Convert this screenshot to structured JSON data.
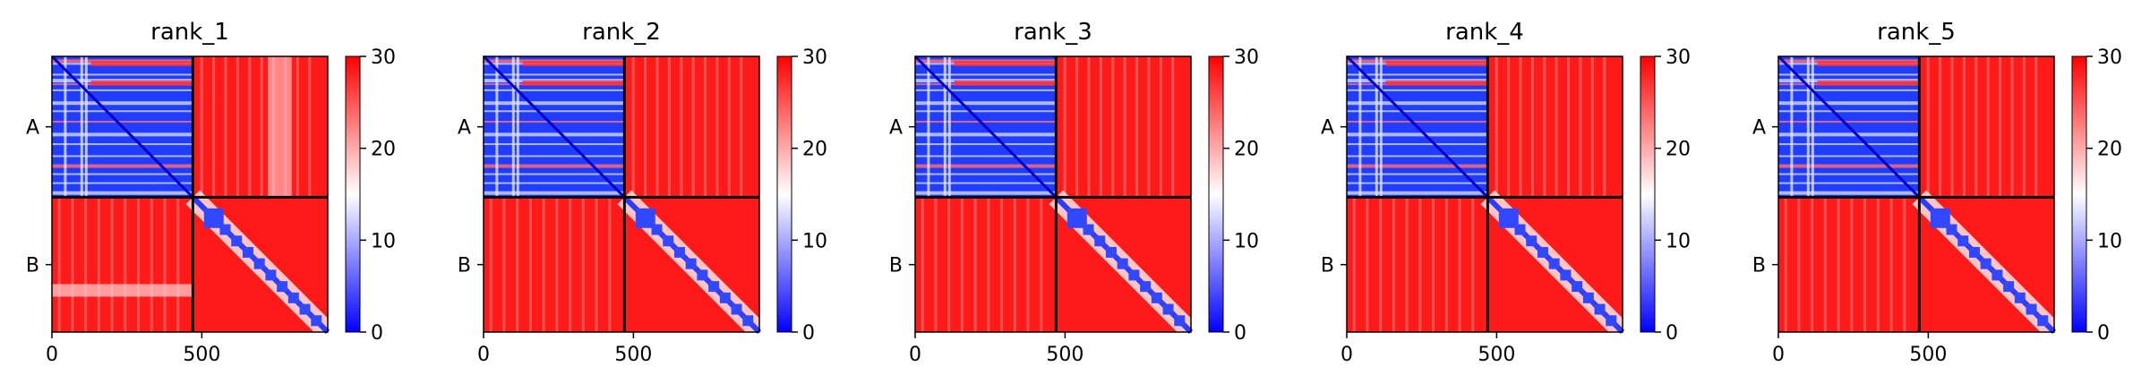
{
  "chart_data": [
    {
      "type": "heatmap",
      "title": "rank_1",
      "chains": [
        {
          "label": "A",
          "start": 0,
          "end": 470
        },
        {
          "label": "B",
          "start": 470,
          "end": 920
        }
      ],
      "x_ticks": [
        0,
        500
      ],
      "xlim": [
        0,
        920
      ],
      "colorbar": {
        "vmin": 0,
        "vmax": 30,
        "ticks": [
          0,
          10,
          20,
          30
        ],
        "colors": [
          "#0000ff",
          "#ffffff",
          "#ff0000"
        ]
      },
      "blocks": {
        "A-A": "low error (mostly blue)",
        "A-B": "high (red)",
        "B-A": "high (red)",
        "B-B": "diagonal band low (blue)"
      }
    },
    {
      "type": "heatmap",
      "title": "rank_2",
      "chains": [
        {
          "label": "A",
          "start": 0,
          "end": 470
        },
        {
          "label": "B",
          "start": 470,
          "end": 920
        }
      ],
      "x_ticks": [
        0,
        500
      ],
      "xlim": [
        0,
        920
      ],
      "colorbar": {
        "vmin": 0,
        "vmax": 30,
        "ticks": [
          0,
          10,
          20,
          30
        ],
        "colors": [
          "#0000ff",
          "#ffffff",
          "#ff0000"
        ]
      },
      "blocks": {
        "A-A": "low error (mostly blue)",
        "A-B": "high (red)",
        "B-A": "high (red)",
        "B-B": "diagonal band low (blue)"
      }
    },
    {
      "type": "heatmap",
      "title": "rank_3",
      "chains": [
        {
          "label": "A",
          "start": 0,
          "end": 470
        },
        {
          "label": "B",
          "start": 470,
          "end": 920
        }
      ],
      "x_ticks": [
        0,
        500
      ],
      "xlim": [
        0,
        920
      ],
      "colorbar": {
        "vmin": 0,
        "vmax": 30,
        "ticks": [
          0,
          10,
          20,
          30
        ],
        "colors": [
          "#0000ff",
          "#ffffff",
          "#ff0000"
        ]
      },
      "blocks": {
        "A-A": "low error (mostly blue)",
        "A-B": "high (red)",
        "B-A": "high (red)",
        "B-B": "diagonal band low (blue)"
      }
    },
    {
      "type": "heatmap",
      "title": "rank_4",
      "chains": [
        {
          "label": "A",
          "start": 0,
          "end": 470
        },
        {
          "label": "B",
          "start": 470,
          "end": 920
        }
      ],
      "x_ticks": [
        0,
        500
      ],
      "xlim": [
        0,
        920
      ],
      "colorbar": {
        "vmin": 0,
        "vmax": 30,
        "ticks": [
          0,
          10,
          20,
          30
        ],
        "colors": [
          "#0000ff",
          "#ffffff",
          "#ff0000"
        ]
      },
      "blocks": {
        "A-A": "low error (mostly blue)",
        "A-B": "high (red)",
        "B-A": "high (red)",
        "B-B": "diagonal band low (blue)"
      }
    },
    {
      "type": "heatmap",
      "title": "rank_5",
      "chains": [
        {
          "label": "A",
          "start": 0,
          "end": 470
        },
        {
          "label": "B",
          "start": 470,
          "end": 920
        }
      ],
      "x_ticks": [
        0,
        500
      ],
      "xlim": [
        0,
        920
      ],
      "colorbar": {
        "vmin": 0,
        "vmax": 30,
        "ticks": [
          0,
          10,
          20,
          30
        ],
        "colors": [
          "#0000ff",
          "#ffffff",
          "#ff0000"
        ]
      },
      "blocks": {
        "A-A": "low error (mostly blue)",
        "A-B": "high (red)",
        "B-A": "high (red)",
        "B-B": "diagonal band low (blue)"
      }
    }
  ]
}
